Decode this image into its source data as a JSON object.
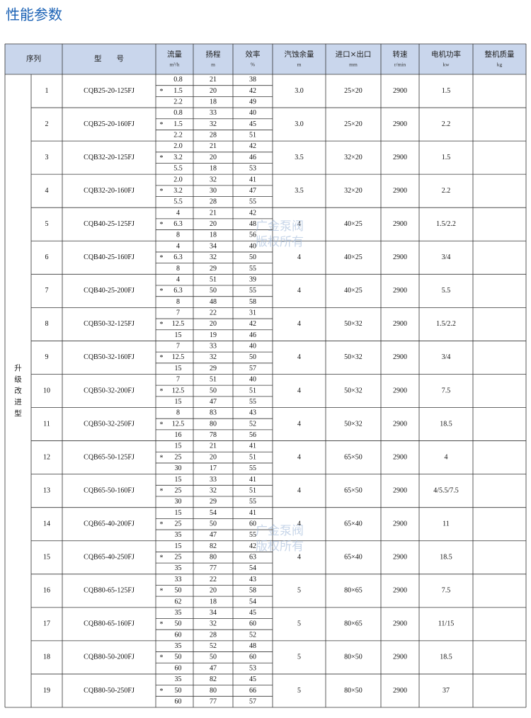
{
  "title": "性能参数",
  "header": {
    "serial": "序列",
    "model": "型　　号",
    "columns": [
      {
        "name": "流量",
        "unit": "m³/h"
      },
      {
        "name": "扬程",
        "unit": "m"
      },
      {
        "name": "效率",
        "unit": "%"
      },
      {
        "name": "汽蚀余量",
        "unit": "m"
      },
      {
        "name": "进口×出口",
        "unit": "mm"
      },
      {
        "name": "转速",
        "unit": "r/min"
      },
      {
        "name": "电机功率",
        "unit": "kw"
      },
      {
        "name": "整机质量",
        "unit": "kg"
      }
    ]
  },
  "group": "升级改进型",
  "design_mark": "*",
  "watermark": [
    "广金泵阀",
    "版权所有"
  ],
  "rows": [
    {
      "no": "1",
      "model": "CQB25-20-125FJ",
      "flow": [
        "0.8",
        "1.5",
        "2.2"
      ],
      "head": [
        "21",
        "20",
        "18"
      ],
      "eff": [
        "38",
        "42",
        "49"
      ],
      "npsh": "3.0",
      "port": "25×20",
      "speed": "2900",
      "power": "1.5"
    },
    {
      "no": "2",
      "model": "CQB25-20-160FJ",
      "flow": [
        "0.8",
        "1.5",
        "2.2"
      ],
      "head": [
        "33",
        "32",
        "28"
      ],
      "eff": [
        "40",
        "45",
        "51"
      ],
      "npsh": "3.0",
      "port": "25×20",
      "speed": "2900",
      "power": "2.2"
    },
    {
      "no": "3",
      "model": "CQB32-20-125FJ",
      "flow": [
        "2.0",
        "3.2",
        "5.5"
      ],
      "head": [
        "21",
        "20",
        "18"
      ],
      "eff": [
        "42",
        "46",
        "53"
      ],
      "npsh": "3.5",
      "port": "32×20",
      "speed": "2900",
      "power": "1.5"
    },
    {
      "no": "4",
      "model": "CQB32-20-160FJ",
      "flow": [
        "2.0",
        "3.2",
        "5.5"
      ],
      "head": [
        "32",
        "30",
        "28"
      ],
      "eff": [
        "41",
        "47",
        "55"
      ],
      "npsh": "3.5",
      "port": "32×20",
      "speed": "2900",
      "power": "2.2"
    },
    {
      "no": "5",
      "model": "CQB40-25-125FJ",
      "flow": [
        "4",
        "6.3",
        "8"
      ],
      "head": [
        "21",
        "20",
        "18"
      ],
      "eff": [
        "42",
        "48",
        "56"
      ],
      "npsh": "4",
      "port": "40×25",
      "speed": "2900",
      "power": "1.5/2.2"
    },
    {
      "no": "6",
      "model": "CQB40-25-160FJ",
      "flow": [
        "4",
        "6.3",
        "8"
      ],
      "head": [
        "34",
        "32",
        "29"
      ],
      "eff": [
        "40",
        "50",
        "55"
      ],
      "npsh": "4",
      "port": "40×25",
      "speed": "2900",
      "power": "3/4"
    },
    {
      "no": "7",
      "model": "CQB40-25-200FJ",
      "flow": [
        "4",
        "6.3",
        "8"
      ],
      "head": [
        "51",
        "50",
        "48"
      ],
      "eff": [
        "39",
        "55",
        "58"
      ],
      "npsh": "4",
      "port": "40×25",
      "speed": "2900",
      "power": "5.5"
    },
    {
      "no": "8",
      "model": "CQB50-32-125FJ",
      "flow": [
        "7",
        "12.5",
        "15"
      ],
      "head": [
        "22",
        "20",
        "19"
      ],
      "eff": [
        "31",
        "42",
        "46"
      ],
      "npsh": "4",
      "port": "50×32",
      "speed": "2900",
      "power": "1.5/2.2"
    },
    {
      "no": "9",
      "model": "CQB50-32-160FJ",
      "flow": [
        "7",
        "12.5",
        "15"
      ],
      "head": [
        "33",
        "32",
        "29"
      ],
      "eff": [
        "40",
        "50",
        "57"
      ],
      "npsh": "4",
      "port": "50×32",
      "speed": "2900",
      "power": "3/4"
    },
    {
      "no": "10",
      "model": "CQB50-32-200FJ",
      "flow": [
        "7",
        "12.5",
        "15"
      ],
      "head": [
        "51",
        "50",
        "47"
      ],
      "eff": [
        "40",
        "51",
        "55"
      ],
      "npsh": "4",
      "port": "50×32",
      "speed": "2900",
      "power": "7.5"
    },
    {
      "no": "11",
      "model": "CQB50-32-250FJ",
      "flow": [
        "8",
        "12.5",
        "16"
      ],
      "head": [
        "83",
        "80",
        "78"
      ],
      "eff": [
        "43",
        "52",
        "56"
      ],
      "npsh": "4",
      "port": "50×32",
      "speed": "2900",
      "power": "18.5"
    },
    {
      "no": "12",
      "model": "CQB65-50-125FJ",
      "flow": [
        "15",
        "25",
        "30"
      ],
      "head": [
        "21",
        "20",
        "17"
      ],
      "eff": [
        "41",
        "51",
        "55"
      ],
      "npsh": "4",
      "port": "65×50",
      "speed": "2900",
      "power": "4"
    },
    {
      "no": "13",
      "model": "CQB65-50-160FJ",
      "flow": [
        "15",
        "25",
        "30"
      ],
      "head": [
        "33",
        "32",
        "29"
      ],
      "eff": [
        "41",
        "51",
        "55"
      ],
      "npsh": "4",
      "port": "65×50",
      "speed": "2900",
      "power": "4/5.5/7.5"
    },
    {
      "no": "14",
      "model": "CQB65-40-200FJ",
      "flow": [
        "15",
        "25",
        "35"
      ],
      "head": [
        "54",
        "50",
        "47"
      ],
      "eff": [
        "41",
        "60",
        "55"
      ],
      "npsh": "4",
      "port": "65×40",
      "speed": "2900",
      "power": "11"
    },
    {
      "no": "15",
      "model": "CQB65-40-250FJ",
      "flow": [
        "15",
        "25",
        "35"
      ],
      "head": [
        "82",
        "80",
        "77"
      ],
      "eff": [
        "42",
        "63",
        "54"
      ],
      "npsh": "4",
      "port": "65×40",
      "speed": "2900",
      "power": "18.5"
    },
    {
      "no": "16",
      "model": "CQB80-65-125FJ",
      "flow": [
        "33",
        "50",
        "62"
      ],
      "head": [
        "22",
        "20",
        "18"
      ],
      "eff": [
        "43",
        "58",
        "54"
      ],
      "npsh": "5",
      "port": "80×65",
      "speed": "2900",
      "power": "7.5"
    },
    {
      "no": "17",
      "model": "CQB80-65-160FJ",
      "flow": [
        "35",
        "50",
        "60"
      ],
      "head": [
        "34",
        "32",
        "28"
      ],
      "eff": [
        "45",
        "60",
        "52"
      ],
      "npsh": "5",
      "port": "80×65",
      "speed": "2900",
      "power": "11/15"
    },
    {
      "no": "18",
      "model": "CQB80-50-200FJ",
      "flow": [
        "35",
        "50",
        "60"
      ],
      "head": [
        "52",
        "50",
        "47"
      ],
      "eff": [
        "48",
        "60",
        "53"
      ],
      "npsh": "5",
      "port": "80×50",
      "speed": "2900",
      "power": "18.5"
    },
    {
      "no": "19",
      "model": "CQB80-50-250FJ",
      "flow": [
        "35",
        "50",
        "60"
      ],
      "head": [
        "82",
        "80",
        "77"
      ],
      "eff": [
        "45",
        "66",
        "57"
      ],
      "npsh": "5",
      "port": "80×50",
      "speed": "2900",
      "power": "37"
    }
  ]
}
